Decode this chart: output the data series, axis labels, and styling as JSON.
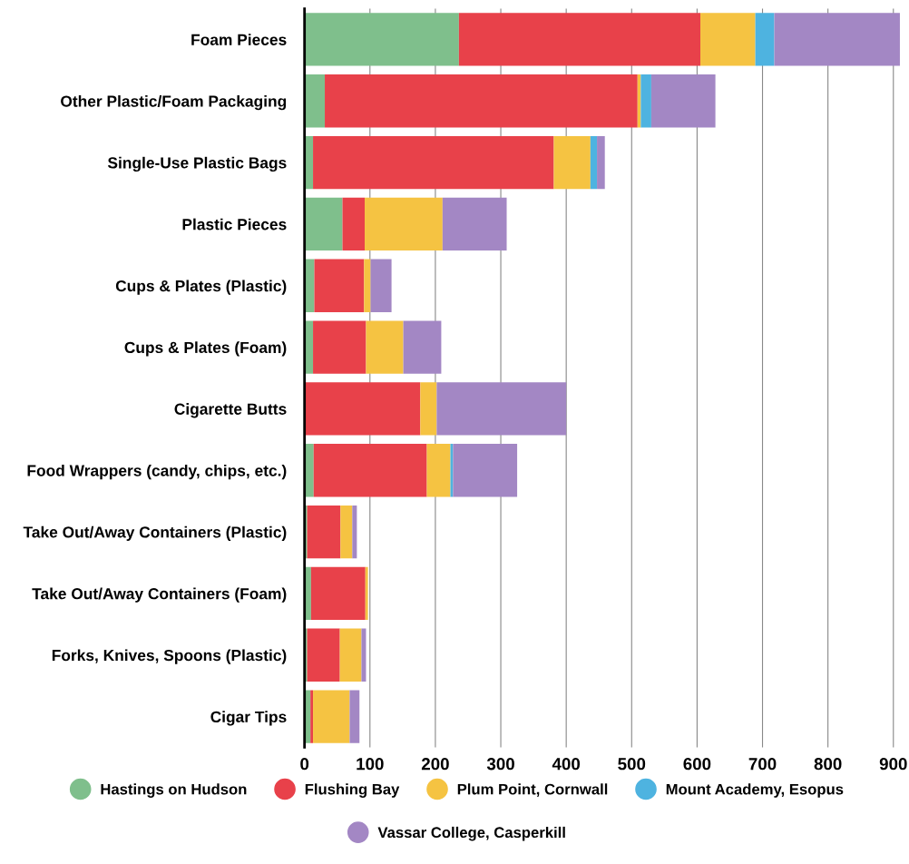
{
  "chart_data": {
    "type": "bar",
    "orientation": "horizontal",
    "stacked": true,
    "categories": [
      "Foam Pieces",
      "Other Plastic/Foam Packaging",
      "Single-Use Plastic Bags",
      "Plastic Pieces",
      "Cups & Plates (Plastic)",
      "Cups & Plates (Foam)",
      "Cigarette Butts",
      "Food Wrappers (candy, chips, etc.)",
      "Take Out/Away Containers (Plastic)",
      "Take Out/Away Containers (Foam)",
      "Forks, Knives, Spoons (Plastic)",
      "Cigar Tips"
    ],
    "series": [
      {
        "name": "Hastings on Hudson",
        "color": "#7fbf8c",
        "values": [
          236,
          31,
          13,
          58,
          15,
          13,
          0,
          14,
          4,
          10,
          4,
          9
        ]
      },
      {
        "name": "Flushing Bay",
        "color": "#e8414a",
        "values": [
          369,
          478,
          368,
          34,
          76,
          81,
          177,
          173,
          51,
          83,
          50,
          4
        ]
      },
      {
        "name": "Plum Point, Cornwall",
        "color": "#f5c342",
        "values": [
          84,
          5,
          56,
          119,
          10,
          57,
          25,
          36,
          18,
          4,
          33,
          56
        ]
      },
      {
        "name": "Mount Academy, Esopus",
        "color": "#4eb3e0",
        "values": [
          29,
          16,
          10,
          0,
          0,
          0,
          0,
          4,
          0,
          0,
          0,
          0
        ]
      },
      {
        "name": "Vassar College, Casperkill",
        "color": "#a387c4",
        "values": [
          192,
          98,
          12,
          98,
          32,
          58,
          198,
          98,
          7,
          0,
          7,
          15
        ]
      }
    ],
    "xlim": [
      0,
      910
    ],
    "xticks": [
      0,
      100,
      200,
      300,
      400,
      500,
      600,
      700,
      800,
      900
    ],
    "grid": "x",
    "legend": "bottom",
    "marker": "circle"
  }
}
